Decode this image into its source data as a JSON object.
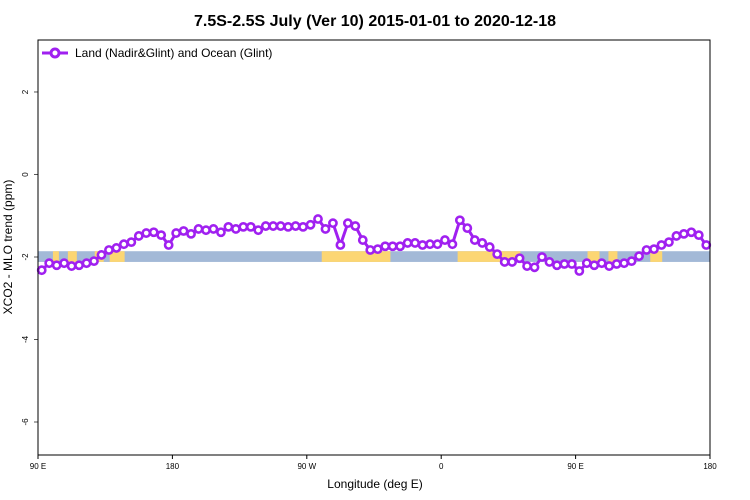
{
  "chart_data": {
    "type": "line",
    "title": "7.5S-2.5S July (Ver 10)   2015-01-01 to 2020-12-18",
    "xlabel": "Longitude (deg E)",
    "ylabel": "XCO2 - MLO trend (ppm)",
    "xlim": [
      90,
      540
    ],
    "ylim": [
      -6.8,
      3.26
    ],
    "x_ticks": [
      {
        "value": 90,
        "label": "90 E"
      },
      {
        "value": 180,
        "label": "180"
      },
      {
        "value": 270,
        "label": "90 W"
      },
      {
        "value": 360,
        "label": "0"
      },
      {
        "value": 450,
        "label": "90 E"
      },
      {
        "value": 540,
        "label": "180"
      }
    ],
    "y_ticks": [
      2,
      0,
      -2,
      -4,
      -6
    ],
    "grid": false,
    "legend": {
      "position": "top-left",
      "entries": [
        "Land (Nadir&Glint) and Ocean (Glint)"
      ]
    },
    "series_color": "#a020f0",
    "band": {
      "ymin": -2.12,
      "ymax": -1.86,
      "ocean_color": "#a3b9d7",
      "land_color": "#fcd673",
      "land_ranges": [
        [
          100,
          104
        ],
        [
          110,
          116
        ],
        [
          128,
          134
        ],
        [
          138,
          148
        ],
        [
          280,
          326
        ],
        [
          371,
          413
        ],
        [
          458,
          466
        ],
        [
          472,
          478
        ],
        [
          500,
          508
        ]
      ]
    },
    "series": [
      {
        "name": "Land (Nadir&Glint) and Ocean (Glint)",
        "x_start": 92.5,
        "x_step": 5,
        "values": [
          -2.32,
          -2.15,
          -2.2,
          -2.15,
          -2.22,
          -2.2,
          -2.15,
          -2.1,
          -1.95,
          -1.83,
          -1.78,
          -1.69,
          -1.64,
          -1.49,
          -1.42,
          -1.4,
          -1.47,
          -1.71,
          -1.42,
          -1.37,
          -1.44,
          -1.32,
          -1.35,
          -1.32,
          -1.4,
          -1.27,
          -1.32,
          -1.27,
          -1.27,
          -1.35,
          -1.25,
          -1.25,
          -1.25,
          -1.27,
          -1.25,
          -1.27,
          -1.22,
          -1.08,
          -1.32,
          -1.18,
          -1.71,
          -1.18,
          -1.25,
          -1.59,
          -1.83,
          -1.81,
          -1.74,
          -1.74,
          -1.74,
          -1.66,
          -1.66,
          -1.71,
          -1.69,
          -1.69,
          -1.59,
          -1.69,
          -1.11,
          -1.3,
          -1.59,
          -1.66,
          -1.76,
          -1.93,
          -2.12,
          -2.12,
          -2.03,
          -2.22,
          -2.25,
          -2.0,
          -2.12,
          -2.2,
          -2.17,
          -2.17,
          -2.34,
          -2.15,
          -2.2,
          -2.15,
          -2.22,
          -2.17,
          -2.15,
          -2.1,
          -1.98,
          -1.83,
          -1.81,
          -1.71,
          -1.64,
          -1.49,
          -1.44,
          -1.4,
          -1.47,
          -1.71
        ]
      }
    ]
  }
}
